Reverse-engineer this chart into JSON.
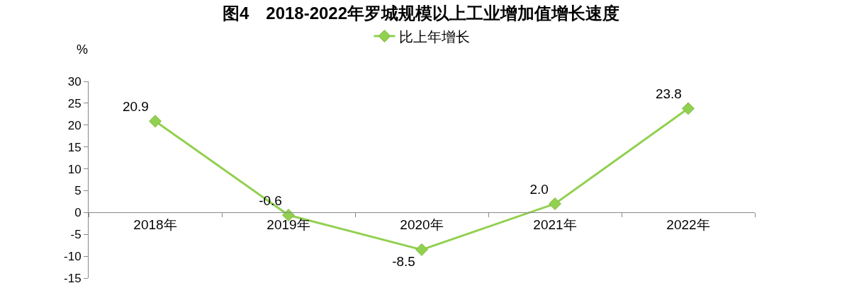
{
  "chart_data": {
    "type": "line",
    "title": "图4　2018-2022年罗城规模以上工业增加值增长速度",
    "ylabel": "%",
    "categories": [
      "2018年",
      "2019年",
      "2020年",
      "2021年",
      "2022年"
    ],
    "series": [
      {
        "name": "比上年增长",
        "color": "#92d050",
        "values": [
          20.9,
          -0.6,
          -8.5,
          2.0,
          23.8
        ],
        "value_labels": [
          "20.9",
          "-0.6",
          "-8.5",
          "2.0",
          "23.8"
        ]
      }
    ],
    "ylim": [
      -15,
      30
    ],
    "yticks": [
      -15,
      -10,
      -5,
      0,
      5,
      10,
      15,
      20,
      25,
      30
    ],
    "grid": false,
    "legend": "top",
    "marker": "diamond",
    "line_style": "solid"
  }
}
